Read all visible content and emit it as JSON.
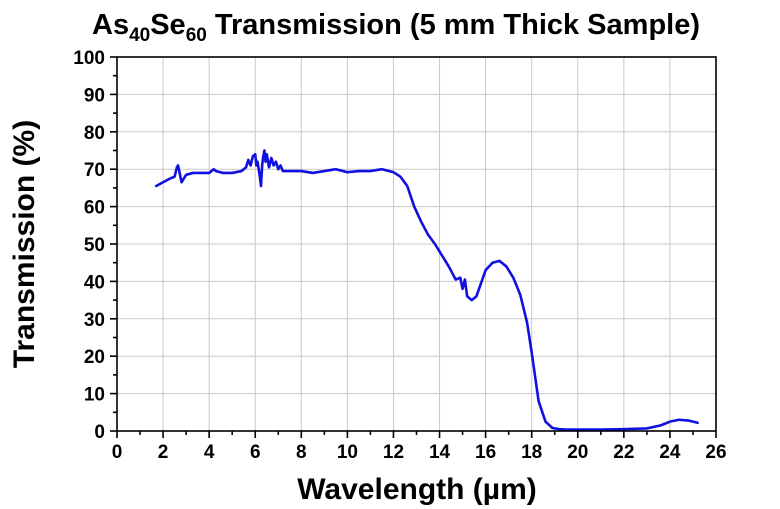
{
  "chart_data": {
    "type": "line",
    "title": {
      "parts": [
        {
          "text": "As",
          "sub": false
        },
        {
          "text": "40",
          "sub": true
        },
        {
          "text": "Se",
          "sub": false
        },
        {
          "text": "60",
          "sub": true
        },
        {
          "text": " Transmission (5 mm Thick Sample)",
          "sub": false
        }
      ]
    },
    "xlabel": "Wavelength (µm)",
    "ylabel": "Transmission (%)",
    "xlim": [
      0,
      26
    ],
    "ylim": [
      0,
      100
    ],
    "xticks": [
      "0",
      "2",
      "4",
      "6",
      "8",
      "10",
      "12",
      "14",
      "16",
      "18",
      "20",
      "22",
      "24",
      "26"
    ],
    "yticks": [
      "0",
      "10",
      "20",
      "30",
      "40",
      "50",
      "60",
      "70",
      "80",
      "90",
      "100"
    ],
    "xtick_values": [
      0,
      2,
      4,
      6,
      8,
      10,
      12,
      14,
      16,
      18,
      20,
      22,
      24,
      26
    ],
    "ytick_values": [
      0,
      10,
      20,
      30,
      40,
      50,
      60,
      70,
      80,
      90,
      100
    ],
    "xminor_step": 1,
    "yminor_step": 5,
    "grid": true,
    "legend": "none",
    "series_color": "#1010e0",
    "series": [
      {
        "x": [
          1.7,
          2.0,
          2.3,
          2.5,
          2.6,
          2.65,
          2.72,
          2.8,
          2.9,
          3.0,
          3.3,
          3.6,
          4.0,
          4.2,
          4.3,
          4.6,
          5.0,
          5.4,
          5.6,
          5.7,
          5.8,
          5.9,
          6.0,
          6.05,
          6.1,
          6.15,
          6.2,
          6.25,
          6.3,
          6.35,
          6.4,
          6.45,
          6.5,
          6.6,
          6.7,
          6.8,
          6.9,
          7.0,
          7.1,
          7.2,
          7.5,
          8.0,
          8.5,
          9.0,
          9.5,
          10.0,
          10.5,
          11.0,
          11.5,
          12.0,
          12.3,
          12.6,
          12.9,
          13.2,
          13.5,
          13.8,
          14.1,
          14.4,
          14.7,
          14.9,
          15.0,
          15.1,
          15.2,
          15.4,
          15.6,
          15.8,
          16.0,
          16.3,
          16.6,
          16.9,
          17.2,
          17.5,
          17.8,
          18.0,
          18.3,
          18.6,
          18.9,
          19.2,
          19.5,
          20.0,
          21.0,
          22.0,
          23.0,
          23.6,
          24.0,
          24.4,
          24.8,
          25.2
        ],
        "y": [
          65.5,
          66.5,
          67.5,
          68.0,
          70.5,
          71.0,
          69.0,
          66.5,
          67.5,
          68.5,
          69.0,
          69.0,
          69.0,
          70.0,
          69.5,
          69.0,
          69.0,
          69.5,
          70.5,
          72.5,
          71.0,
          73.5,
          74.0,
          71.0,
          72.0,
          70.0,
          68.0,
          65.5,
          71.0,
          73.5,
          75.0,
          72.0,
          74.0,
          70.5,
          73.0,
          71.0,
          72.0,
          70.0,
          71.0,
          69.5,
          69.5,
          69.5,
          69.0,
          69.5,
          70.0,
          69.2,
          69.5,
          69.5,
          70.0,
          69.2,
          68.0,
          65.5,
          60.0,
          56.0,
          52.5,
          50.0,
          47.0,
          44.0,
          40.5,
          41.0,
          38.0,
          40.5,
          36.0,
          35.0,
          36.0,
          39.5,
          43.0,
          45.0,
          45.5,
          44.0,
          41.0,
          36.5,
          29.0,
          21.0,
          8.0,
          2.5,
          0.8,
          0.5,
          0.4,
          0.4,
          0.4,
          0.5,
          0.7,
          1.5,
          2.5,
          3.0,
          2.8,
          2.2
        ]
      }
    ]
  }
}
